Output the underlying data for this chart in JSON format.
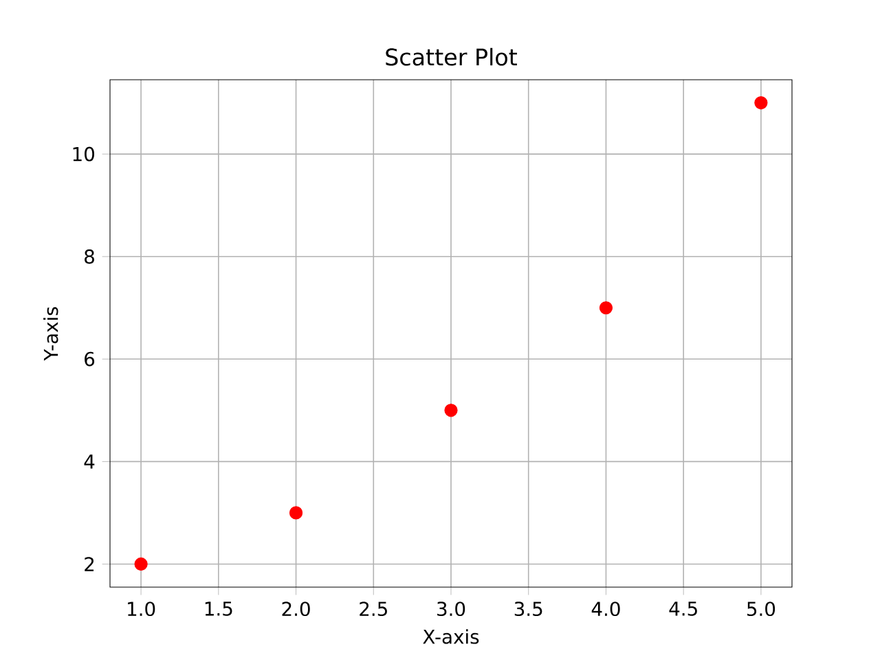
{
  "chart_data": {
    "type": "scatter",
    "title": "Scatter Plot",
    "xlabel": "X-axis",
    "ylabel": "Y-axis",
    "x": [
      1,
      2,
      3,
      4,
      5
    ],
    "values": [
      2,
      3,
      5,
      7,
      11
    ],
    "color": "#ff0000",
    "marker": "circle",
    "grid": true,
    "xlim": [
      0.8,
      5.2
    ],
    "ylim": [
      1.55,
      11.45
    ],
    "xticks": [
      {
        "value": 1,
        "label": "1.0"
      },
      {
        "value": 1.5,
        "label": "1.5"
      },
      {
        "value": 2,
        "label": "2.0"
      },
      {
        "value": 2.5,
        "label": "2.5"
      },
      {
        "value": 3,
        "label": "3.0"
      },
      {
        "value": 3.5,
        "label": "3.5"
      },
      {
        "value": 4,
        "label": "4.0"
      },
      {
        "value": 4.5,
        "label": "4.5"
      },
      {
        "value": 5,
        "label": "5.0"
      }
    ],
    "yticks": [
      2,
      4,
      6,
      8,
      10
    ]
  }
}
